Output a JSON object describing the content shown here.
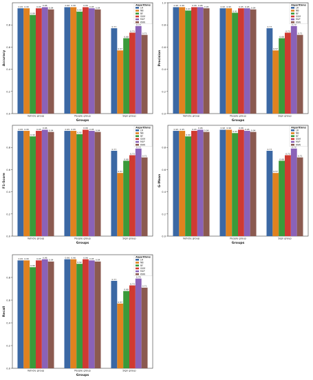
{
  "chart_data": [
    {
      "type": "bar",
      "categories": [
        "Vehicle group",
        "People group",
        "Sign group"
      ],
      "xlabel": "Groups",
      "ylabel": "Accuracy",
      "ylim": [
        0,
        1.0
      ],
      "yticks": [
        "0.0",
        "0.2",
        "0.4",
        "0.6",
        "0.8"
      ],
      "legend_title": "Algorithms",
      "legend_position": "top-right",
      "series": [
        {
          "name": "LR",
          "color": "#3b68a4",
          "values": [
            0.95,
            0.96,
            0.77
          ],
          "labels": [
            "0.95",
            "0.96",
            "0.77"
          ]
        },
        {
          "name": "NB",
          "color": "#e0821f",
          "values": [
            0.95,
            0.96,
            0.57
          ],
          "labels": [
            "0.95",
            "0.96",
            "0.57"
          ]
        },
        {
          "name": "RF",
          "color": "#3a9a3a",
          "values": [
            0.89,
            0.92,
            0.68
          ],
          "labels": [
            "0.89",
            "0.92",
            "0.68"
          ]
        },
        {
          "name": "SVM",
          "color": "#cf3a32",
          "values": [
            0.95,
            0.96,
            0.73
          ],
          "labels": [
            "0.95",
            "0.96",
            "0.73"
          ]
        },
        {
          "name": "MLP",
          "color": "#8a62b8",
          "values": [
            0.96,
            0.95,
            0.79
          ],
          "labels": [
            "0.96",
            "0.95",
            "0.79"
          ]
        },
        {
          "name": "KNN",
          "color": "#8b5a50",
          "values": [
            0.94,
            0.94,
            0.71
          ],
          "labels": [
            "0.94",
            "0.94",
            "0.71"
          ]
        }
      ]
    },
    {
      "type": "bar",
      "categories": [
        "Vehicle group",
        "People group",
        "Sign group"
      ],
      "xlabel": "Groups",
      "ylabel": "Precision",
      "ylim": [
        0,
        1.0
      ],
      "yticks": [
        "0.0",
        "0.2",
        "0.4",
        "0.6",
        "0.8",
        "1.0"
      ],
      "legend_title": "Algorithms",
      "legend_position": "top-right",
      "series": [
        {
          "name": "LR",
          "color": "#3b68a4",
          "values": [
            0.96,
            0.95,
            0.77
          ],
          "labels": [
            "0.96",
            "0.95",
            "0.77"
          ]
        },
        {
          "name": "NB",
          "color": "#e0821f",
          "values": [
            0.96,
            0.95,
            0.57
          ],
          "labels": [
            "0.96",
            "0.95",
            "0.57"
          ]
        },
        {
          "name": "RF",
          "color": "#3a9a3a",
          "values": [
            0.93,
            0.91,
            0.68
          ],
          "labels": [
            "0.93",
            "0.91",
            "0.68"
          ]
        },
        {
          "name": "SVM",
          "color": "#cf3a32",
          "values": [
            0.96,
            0.95,
            0.73
          ],
          "labels": [
            "0.96",
            "0.95",
            "0.73"
          ]
        },
        {
          "name": "MLP",
          "color": "#8a62b8",
          "values": [
            0.96,
            0.95,
            0.79
          ],
          "labels": [
            "0.96",
            "0.95",
            "0.79"
          ]
        },
        {
          "name": "KNN",
          "color": "#8b5a50",
          "values": [
            0.95,
            0.94,
            0.71
          ],
          "labels": [
            "0.95",
            "0.94",
            "0.71"
          ]
        }
      ]
    },
    {
      "type": "bar",
      "categories": [
        "Vehicle group",
        "People group",
        "Sign group"
      ],
      "xlabel": "Groups",
      "ylabel": "F1-Score",
      "ylim": [
        0,
        1.0
      ],
      "yticks": [
        "0.0",
        "0.2",
        "0.4",
        "0.6",
        "0.8"
      ],
      "legend_title": "Algorithms",
      "legend_position": "top-right",
      "series": [
        {
          "name": "LR",
          "color": "#3b68a4",
          "values": [
            0.95,
            0.95,
            0.77
          ],
          "labels": [
            "0.95",
            "0.95",
            "0.77"
          ]
        },
        {
          "name": "NB",
          "color": "#e0821f",
          "values": [
            0.95,
            0.95,
            0.57
          ],
          "labels": [
            "0.95",
            "0.95",
            "0.57"
          ]
        },
        {
          "name": "RF",
          "color": "#3a9a3a",
          "values": [
            0.9,
            0.92,
            0.68
          ],
          "labels": [
            "0.90",
            "0.92",
            "0.68"
          ]
        },
        {
          "name": "SVM",
          "color": "#cf3a32",
          "values": [
            0.95,
            0.96,
            0.73
          ],
          "labels": [
            "0.95",
            "0.96",
            "0.73"
          ]
        },
        {
          "name": "MLP",
          "color": "#8a62b8",
          "values": [
            0.96,
            0.95,
            0.79
          ],
          "labels": [
            "0.96",
            "0.95",
            "0.79"
          ]
        },
        {
          "name": "KNN",
          "color": "#8b5a50",
          "values": [
            0.94,
            0.94,
            0.71
          ],
          "labels": [
            "0.94",
            "0.94",
            "0.71"
          ]
        }
      ]
    },
    {
      "type": "bar",
      "categories": [
        "Vehicle group",
        "People group",
        "Sign group"
      ],
      "xlabel": "Groups",
      "ylabel": "G-Mean",
      "ylim": [
        0,
        1.0
      ],
      "yticks": [
        "0.0",
        "0.2",
        "0.4",
        "0.6",
        "0.8"
      ],
      "legend_title": "Algorithms",
      "legend_position": "top-right",
      "series": [
        {
          "name": "LR",
          "color": "#3b68a4",
          "values": [
            0.95,
            0.96,
            0.77
          ],
          "labels": [
            "0.95",
            "0.96",
            "0.77"
          ]
        },
        {
          "name": "NB",
          "color": "#e0821f",
          "values": [
            0.95,
            0.96,
            0.57
          ],
          "labels": [
            "0.95",
            "0.96",
            "0.57"
          ]
        },
        {
          "name": "RF",
          "color": "#3a9a3a",
          "values": [
            0.9,
            0.93,
            0.68
          ],
          "labels": [
            "0.90",
            "0.93",
            "0.68"
          ]
        },
        {
          "name": "SVM",
          "color": "#cf3a32",
          "values": [
            0.95,
            0.96,
            0.73
          ],
          "labels": [
            "0.95",
            "0.96",
            "0.73"
          ]
        },
        {
          "name": "MLP",
          "color": "#8a62b8",
          "values": [
            0.96,
            0.95,
            0.79
          ],
          "labels": [
            "0.96",
            "0.95",
            "0.79"
          ]
        },
        {
          "name": "KNN",
          "color": "#8b5a50",
          "values": [
            0.94,
            0.94,
            0.71
          ],
          "labels": [
            "0.94",
            "0.94",
            "0.71"
          ]
        }
      ]
    },
    {
      "type": "bar",
      "categories": [
        "Vehicle group",
        "People group",
        "Sign group"
      ],
      "xlabel": "Groups",
      "ylabel": "Recall",
      "ylim": [
        0,
        1.0
      ],
      "yticks": [
        "0.0",
        "0.2",
        "0.4",
        "0.6",
        "0.8"
      ],
      "legend_title": "Algorithms",
      "legend_position": "top-right",
      "series": [
        {
          "name": "LR",
          "color": "#3b68a4",
          "values": [
            0.95,
            0.96,
            0.77
          ],
          "labels": [
            "0.95",
            "0.96",
            "0.77"
          ]
        },
        {
          "name": "NB",
          "color": "#e0821f",
          "values": [
            0.95,
            0.96,
            0.57
          ],
          "labels": [
            "0.95",
            "0.96",
            "0.57"
          ]
        },
        {
          "name": "RF",
          "color": "#3a9a3a",
          "values": [
            0.89,
            0.92,
            0.68
          ],
          "labels": [
            "0.89",
            "0.92",
            "0.68"
          ]
        },
        {
          "name": "SVM",
          "color": "#cf3a32",
          "values": [
            0.95,
            0.96,
            0.73
          ],
          "labels": [
            "0.95",
            "0.96",
            "0.73"
          ]
        },
        {
          "name": "MLP",
          "color": "#8a62b8",
          "values": [
            0.96,
            0.95,
            0.79
          ],
          "labels": [
            "0.96",
            "0.95",
            "0.79"
          ]
        },
        {
          "name": "KNN",
          "color": "#8b5a50",
          "values": [
            0.94,
            0.94,
            0.71
          ],
          "labels": [
            "0.94",
            "0.94",
            "0.71"
          ]
        }
      ]
    }
  ]
}
